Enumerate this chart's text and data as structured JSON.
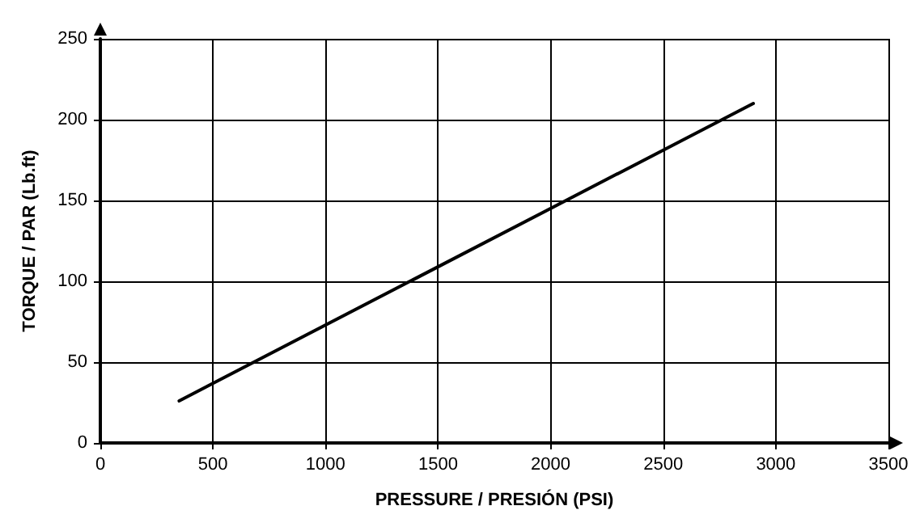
{
  "chart_data": {
    "type": "line",
    "xlabel": "PRESSURE / PRESIÓN (PSI)",
    "ylabel": "TORQUE / PAR (Lb.ft)",
    "x": [
      350,
      2900
    ],
    "series": [
      {
        "color": "#000000",
        "values": [
          26,
          210
        ]
      }
    ],
    "xlim": [
      0,
      3500
    ],
    "xticks": [
      0,
      500,
      1000,
      1500,
      2000,
      2500,
      3000,
      3500
    ],
    "ylim": [
      0,
      250
    ],
    "yticks": [
      0,
      50,
      100,
      150,
      200,
      250
    ],
    "grid": true,
    "marker": "none",
    "line_style": "solid"
  }
}
